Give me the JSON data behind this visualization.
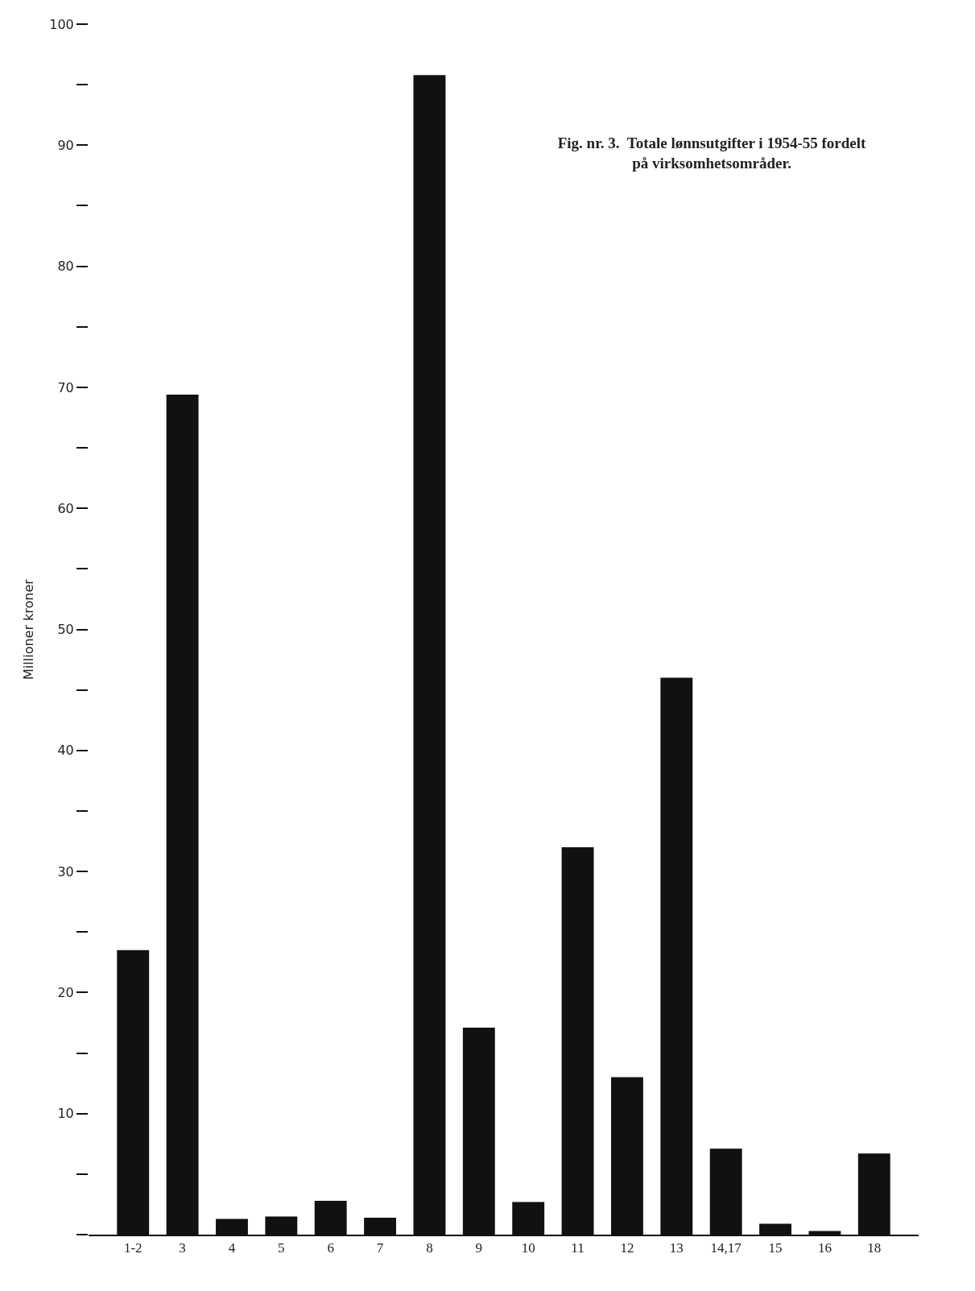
{
  "chart_data": {
    "type": "bar",
    "title": "Fig. nr. 3.  Totale lønnsutgifter i 1954-55 fordelt\npå virksomhetsområder.",
    "ylabel": "Millioner kroner",
    "categories": [
      "1-2",
      "3",
      "4",
      "5",
      "6",
      "7",
      "8",
      "9",
      "10",
      "11",
      "12",
      "13",
      "14,17",
      "15",
      "16",
      "18"
    ],
    "values": [
      23.5,
      69.4,
      1.3,
      1.5,
      2.8,
      1.4,
      95.8,
      17.1,
      2.7,
      32.0,
      13.0,
      46.0,
      7.1,
      0.9,
      0.3,
      6.7
    ],
    "color": "#111111",
    "ylim": [
      0,
      100
    ],
    "yticks": [
      {
        "value": 0,
        "label": null
      },
      {
        "value": 5,
        "label": null
      },
      10,
      {
        "value": 15,
        "label": null
      },
      20,
      {
        "value": 25,
        "label": null
      },
      30,
      {
        "value": 35,
        "label": null
      },
      40,
      {
        "value": 45,
        "label": null
      },
      50,
      {
        "value": 55,
        "label": null
      },
      60,
      {
        "value": 65,
        "label": null
      },
      70,
      {
        "value": 75,
        "label": null
      },
      80,
      {
        "value": 85,
        "label": null
      },
      90,
      {
        "value": 95,
        "label": null
      },
      100
    ],
    "tick_labels": "xy"
  }
}
